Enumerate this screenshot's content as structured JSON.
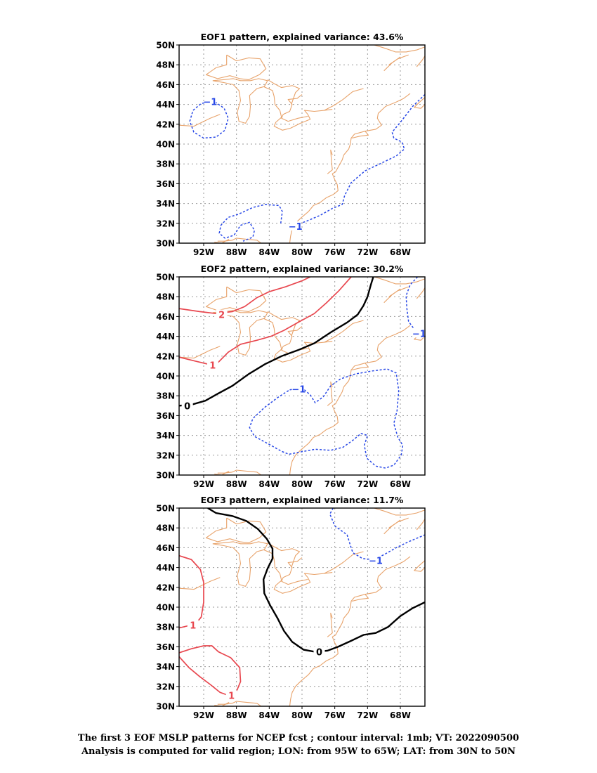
{
  "panels": [
    {
      "title": "EOF1 pattern, explained variance: 43.6%",
      "contours": [
        {
          "value": -1,
          "label": "−1",
          "points": [
            [
              -91.6,
              44.2
            ],
            [
              -90.5,
              44.2
            ],
            [
              -89.5,
              43.6
            ],
            [
              -89.0,
              42.6
            ],
            [
              -89.4,
              41.4
            ],
            [
              -90.5,
              40.7
            ],
            [
              -92.0,
              40.6
            ],
            [
              -93.2,
              41.2
            ],
            [
              -93.7,
              42.3
            ],
            [
              -93.3,
              43.4
            ],
            [
              -92.3,
              44.1
            ],
            [
              -91.6,
              44.2
            ]
          ],
          "labelAt": [
            -91.2,
            44.3
          ]
        },
        {
          "value": -1,
          "label": "−1",
          "points": [
            [
              -65,
              45.0
            ],
            [
              -66.5,
              43.8
            ],
            [
              -67.8,
              42.4
            ],
            [
              -69.0,
              41.2
            ],
            [
              -68.8,
              40.6
            ],
            [
              -67.8,
              40.2
            ],
            [
              -67.5,
              39.5
            ],
            [
              -68.5,
              38.8
            ],
            [
              -70.5,
              38.0
            ],
            [
              -72.3,
              37.3
            ],
            [
              -74.0,
              36.1
            ],
            [
              -74.8,
              34.8
            ],
            [
              -75.1,
              33.9
            ],
            [
              -76.3,
              33.5
            ],
            [
              -77.8,
              32.8
            ],
            [
              -79.5,
              32.2
            ],
            [
              -81.5,
              31.6
            ]
          ],
          "labelAt": [
            -80.8,
            31.7
          ]
        },
        {
          "value": -1,
          "label": "",
          "points": [
            [
              -82.6,
              32.0
            ],
            [
              -82.4,
              33.2
            ],
            [
              -82.8,
              33.8
            ],
            [
              -84.5,
              33.9
            ],
            [
              -86.0,
              33.6
            ],
            [
              -87.8,
              32.9
            ],
            [
              -89.0,
              32.6
            ],
            [
              -89.9,
              31.8
            ],
            [
              -90.1,
              31.0
            ],
            [
              -89.4,
              30.5
            ],
            [
              -88.3,
              30.8
            ],
            [
              -87.5,
              31.8
            ],
            [
              -86.4,
              32.1
            ],
            [
              -85.8,
              31.3
            ],
            [
              -86.0,
              30.6
            ],
            [
              -87.2,
              30.2
            ]
          ],
          "labelAt": null
        }
      ]
    },
    {
      "title": "EOF2 pattern, explained variance: 30.2%",
      "contours": [
        {
          "value": 2,
          "label": "2",
          "points": [
            [
              -95,
              46.8
            ],
            [
              -92.5,
              46.5
            ],
            [
              -90.5,
              46.3
            ],
            [
              -88.5,
              46.5
            ],
            [
              -87.0,
              47.0
            ],
            [
              -85.5,
              47.9
            ],
            [
              -84.0,
              48.5
            ],
            [
              -82.0,
              49.0
            ],
            [
              -80.0,
              49.6
            ],
            [
              -79.0,
              50.0
            ]
          ],
          "labelAt": [
            -89.8,
            46.2
          ]
        },
        {
          "value": 1,
          "label": "1",
          "points": [
            [
              -95,
              41.9
            ],
            [
              -93.0,
              41.5
            ],
            [
              -91.5,
              41.2
            ],
            [
              -90.2,
              41.4
            ],
            [
              -89.0,
              42.4
            ],
            [
              -87.5,
              43.2
            ],
            [
              -85.5,
              43.6
            ],
            [
              -83.8,
              44.0
            ],
            [
              -82.2,
              44.6
            ],
            [
              -80.5,
              45.4
            ],
            [
              -78.5,
              46.3
            ],
            [
              -77.0,
              47.4
            ],
            [
              -75.5,
              48.6
            ],
            [
              -74.0,
              50.0
            ]
          ],
          "labelAt": [
            -90.9,
            41.1
          ]
        },
        {
          "value": 0,
          "label": "0",
          "points": [
            [
              -95,
              37.0
            ],
            [
              -93.5,
              37.1
            ],
            [
              -91.8,
              37.5
            ],
            [
              -90.3,
              38.2
            ],
            [
              -88.5,
              39.0
            ],
            [
              -86.5,
              40.2
            ],
            [
              -84.5,
              41.2
            ],
            [
              -82.5,
              42.0
            ],
            [
              -80.5,
              42.6
            ],
            [
              -78.5,
              43.3
            ],
            [
              -76.5,
              44.4
            ],
            [
              -74.5,
              45.4
            ],
            [
              -73.2,
              46.2
            ],
            [
              -72.5,
              47.1
            ],
            [
              -72.0,
              48.0
            ],
            [
              -71.6,
              49.2
            ],
            [
              -71.3,
              50.0
            ]
          ],
          "labelAt": [
            -94.0,
            37.0
          ]
        },
        {
          "value": -1,
          "label": "−1",
          "points": [
            [
              -81.5,
              38.6
            ],
            [
              -80.0,
              38.8
            ],
            [
              -79.0,
              38.1
            ],
            [
              -78.4,
              37.3
            ],
            [
              -77.4,
              37.9
            ],
            [
              -76.5,
              39.0
            ],
            [
              -75.3,
              39.7
            ],
            [
              -73.5,
              40.2
            ],
            [
              -71.5,
              40.5
            ],
            [
              -69.6,
              40.7
            ],
            [
              -68.5,
              40.3
            ],
            [
              -68.2,
              38.5
            ],
            [
              -68.4,
              36.5
            ],
            [
              -68.8,
              35.2
            ],
            [
              -68.3,
              33.8
            ],
            [
              -67.7,
              33.0
            ],
            [
              -67.9,
              32.0
            ],
            [
              -68.8,
              31.0
            ],
            [
              -69.8,
              30.7
            ],
            [
              -71.0,
              30.9
            ],
            [
              -72.1,
              31.7
            ],
            [
              -72.4,
              33.0
            ],
            [
              -72.0,
              34.0
            ],
            [
              -72.8,
              34.2
            ],
            [
              -73.8,
              33.5
            ],
            [
              -75.0,
              32.8
            ],
            [
              -76.5,
              32.5
            ],
            [
              -78.4,
              32.6
            ],
            [
              -80.4,
              32.3
            ],
            [
              -81.6,
              32.1
            ],
            [
              -82.5,
              32.4
            ],
            [
              -84.0,
              33.1
            ],
            [
              -85.8,
              33.9
            ],
            [
              -86.4,
              34.8
            ],
            [
              -86.0,
              35.7
            ],
            [
              -84.6,
              36.8
            ],
            [
              -83.0,
              37.8
            ],
            [
              -81.5,
              38.6
            ]
          ],
          "labelAt": [
            -80.4,
            38.7
          ]
        },
        {
          "value": -1,
          "label": "−1",
          "points": [
            [
              -65.9,
              50.0
            ],
            [
              -66.8,
              49.2
            ],
            [
              -67.3,
              48.1
            ],
            [
              -67.2,
              46.8
            ],
            [
              -67.0,
              45.5
            ],
            [
              -66.2,
              44.6
            ],
            [
              -65.5,
              44.4
            ],
            [
              -65.0,
              44.3
            ]
          ],
          "labelAt": [
            -65.7,
            44.3
          ]
        }
      ]
    },
    {
      "title": "EOF3 pattern, explained variance: 11.7%",
      "contours": [
        {
          "value": 1,
          "label": "1",
          "points": [
            [
              -95,
              45.2
            ],
            [
              -93.5,
              44.8
            ],
            [
              -92.4,
              43.8
            ],
            [
              -92.0,
              42.5
            ],
            [
              -92.0,
              40.5
            ],
            [
              -92.3,
              39.0
            ],
            [
              -93.0,
              38.3
            ],
            [
              -95,
              37.9
            ]
          ],
          "labelAt": [
            -93.3,
            38.2
          ]
        },
        {
          "value": 1,
          "label": "1",
          "points": [
            [
              -95,
              35.4
            ],
            [
              -93.5,
              35.8
            ],
            [
              -92.0,
              36.1
            ],
            [
              -91.0,
              36.1
            ],
            [
              -90.2,
              35.5
            ],
            [
              -88.7,
              34.9
            ],
            [
              -87.6,
              33.9
            ],
            [
              -87.5,
              32.5
            ],
            [
              -88.0,
              31.5
            ],
            [
              -89.0,
              31.1
            ],
            [
              -90.0,
              31.4
            ],
            [
              -91.2,
              32.2
            ],
            [
              -92.5,
              33.0
            ],
            [
              -93.8,
              33.9
            ],
            [
              -95,
              35.0
            ]
          ],
          "labelAt": [
            -88.6,
            31.1
          ]
        },
        {
          "value": 0,
          "label": "0",
          "points": [
            [
              -91.5,
              50.0
            ],
            [
              -90.5,
              49.5
            ],
            [
              -88.5,
              49.2
            ],
            [
              -86.8,
              48.7
            ],
            [
              -85.4,
              47.9
            ],
            [
              -84.3,
              46.9
            ],
            [
              -83.6,
              45.9
            ],
            [
              -83.6,
              44.9
            ],
            [
              -84.2,
              43.9
            ],
            [
              -84.7,
              42.8
            ],
            [
              -84.6,
              41.4
            ],
            [
              -83.9,
              40.2
            ],
            [
              -83.0,
              38.9
            ],
            [
              -82.2,
              37.6
            ],
            [
              -81.2,
              36.5
            ],
            [
              -79.8,
              35.7
            ],
            [
              -78.4,
              35.5
            ],
            [
              -76.9,
              35.6
            ],
            [
              -75.6,
              36.0
            ],
            [
              -74.0,
              36.6
            ],
            [
              -72.5,
              37.2
            ],
            [
              -71.0,
              37.4
            ],
            [
              -69.5,
              38.0
            ],
            [
              -68.0,
              39.1
            ],
            [
              -66.5,
              39.9
            ],
            [
              -65,
              40.5
            ]
          ],
          "labelAt": [
            -77.9,
            35.5
          ]
        },
        {
          "value": -1,
          "label": "−1",
          "points": [
            [
              -76.2,
              50.0
            ],
            [
              -76.6,
              49.4
            ],
            [
              -76.0,
              48.2
            ],
            [
              -74.5,
              47.3
            ],
            [
              -74.2,
              46.5
            ],
            [
              -73.8,
              45.5
            ],
            [
              -72.6,
              44.9
            ],
            [
              -71.3,
              44.8
            ],
            [
              -70.0,
              45.3
            ],
            [
              -68.5,
              46.0
            ],
            [
              -67.0,
              46.6
            ],
            [
              -65,
              47.3
            ]
          ],
          "labelAt": [
            -71.0,
            44.7
          ]
        }
      ]
    }
  ],
  "axes": {
    "xlim": [
      -95,
      -65
    ],
    "ylim": [
      30,
      50
    ],
    "x_ticks": [
      {
        "v": -92,
        "label": "92W"
      },
      {
        "v": -88,
        "label": "88W"
      },
      {
        "v": -84,
        "label": "84W"
      },
      {
        "v": -80,
        "label": "80W"
      },
      {
        "v": -76,
        "label": "76W"
      },
      {
        "v": -72,
        "label": "72W"
      },
      {
        "v": -68,
        "label": "68W"
      }
    ],
    "y_ticks": [
      {
        "v": 30,
        "label": "30N"
      },
      {
        "v": 32,
        "label": "32N"
      },
      {
        "v": 34,
        "label": "34N"
      },
      {
        "v": 36,
        "label": "36N"
      },
      {
        "v": 38,
        "label": "38N"
      },
      {
        "v": 40,
        "label": "40N"
      },
      {
        "v": 42,
        "label": "42N"
      },
      {
        "v": 44,
        "label": "44N"
      },
      {
        "v": 46,
        "label": "46N"
      },
      {
        "v": 48,
        "label": "48N"
      },
      {
        "v": 50,
        "label": "50N"
      }
    ]
  },
  "colors": {
    "coast": "#e8a36b",
    "positive": "#e8474f",
    "negative": "#2848e6",
    "zero": "#000000",
    "grid": "#9a9a9a"
  },
  "caption": {
    "line1": "The first 3 EOF MSLP patterns for NCEP fcst ; contour interval: 1mb; VT: 2022090500",
    "line2": "Analysis is computed for valid region; LON: from 95W to 65W; LAT: from 30N to 50N"
  }
}
